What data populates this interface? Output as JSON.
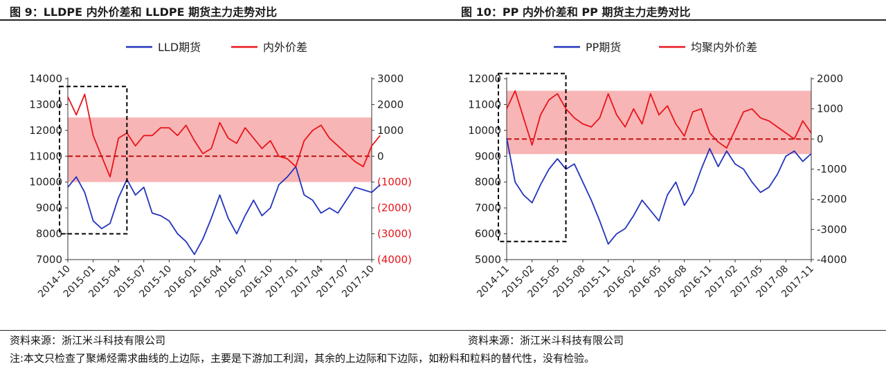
{
  "figures": [
    {
      "title": "图 9：LLDPE 内外价差和 LLDPE 期货主力走势对比",
      "source": "资料来源：浙江米斗科技有限公司"
    },
    {
      "title": "图 10：PP 内外价差和 PP 期货主力走势对比",
      "source": "资料来源：浙江米斗科技有限公司"
    }
  ],
  "note": "注:本文只检查了聚烯烃需求曲线的上边际，主要是下游加工利润，其余的上边际和下边际，如粉料和粒料的替代性，没有检验。",
  "colors": {
    "blue": "#2233bb",
    "red": "#e8141b",
    "band": "#f7a8a8",
    "dashed_red": "#c01010"
  },
  "chart_data": [
    {
      "type": "line",
      "x_ticks": [
        "2014-10",
        "2015-01",
        "2015-04",
        "2015-07",
        "2015-10",
        "2016-01",
        "2016-04",
        "2016-07",
        "2016-10",
        "2017-01",
        "2017-04",
        "2017-07",
        "2017-10"
      ],
      "left_axis": {
        "range": [
          7000,
          14000
        ],
        "ticks": [
          7000,
          8000,
          9000,
          10000,
          11000,
          12000,
          13000,
          14000
        ],
        "labels": [
          "7000",
          "8000",
          "9000",
          "10000",
          "11000",
          "12000",
          "13000",
          "14000"
        ]
      },
      "right_axis": {
        "range": [
          -4000,
          3000
        ],
        "ticks": [
          -4000,
          -3000,
          -2000,
          -1000,
          0,
          1000,
          2000,
          3000
        ],
        "labels": [
          "(4000)",
          "(3000)",
          "(2000)",
          "(1000)",
          "0",
          "1000",
          "2000",
          "3000"
        ]
      },
      "band_right": [
        -1000,
        1500
      ],
      "zero_line": 0,
      "highlight_box": {
        "x_start": "2014-10",
        "x_end": "2015-05",
        "left_y": [
          8000,
          13700
        ]
      },
      "series": [
        {
          "name": "LLD期货",
          "axis": "left",
          "color": "#2233bb",
          "points": [
            [
              "2014-10",
              9800
            ],
            [
              "2014-11",
              10200
            ],
            [
              "2014-12",
              9600
            ],
            [
              "2015-01",
              8500
            ],
            [
              "2015-02",
              8200
            ],
            [
              "2015-03",
              8400
            ],
            [
              "2015-04",
              9400
            ],
            [
              "2015-05",
              10100
            ],
            [
              "2015-06",
              9500
            ],
            [
              "2015-07",
              9800
            ],
            [
              "2015-08",
              8800
            ],
            [
              "2015-09",
              8700
            ],
            [
              "2015-10",
              8500
            ],
            [
              "2015-11",
              8000
            ],
            [
              "2015-12",
              7700
            ],
            [
              "2016-01",
              7200
            ],
            [
              "2016-02",
              7800
            ],
            [
              "2016-03",
              8600
            ],
            [
              "2016-04",
              9500
            ],
            [
              "2016-05",
              8600
            ],
            [
              "2016-06",
              8000
            ],
            [
              "2016-07",
              8700
            ],
            [
              "2016-08",
              9300
            ],
            [
              "2016-09",
              8700
            ],
            [
              "2016-10",
              9000
            ],
            [
              "2016-11",
              9900
            ],
            [
              "2016-12",
              10200
            ],
            [
              "2017-01",
              10600
            ],
            [
              "2017-02",
              9500
            ],
            [
              "2017-03",
              9300
            ],
            [
              "2017-04",
              8800
            ],
            [
              "2017-05",
              9000
            ],
            [
              "2017-06",
              8800
            ],
            [
              "2017-07",
              9300
            ],
            [
              "2017-08",
              9800
            ],
            [
              "2017-09",
              9700
            ],
            [
              "2017-10",
              9600
            ],
            [
              "2017-11",
              9900
            ]
          ]
        },
        {
          "name": "内外价差",
          "axis": "right",
          "color": "#e8141b",
          "points": [
            [
              "2014-10",
              2300
            ],
            [
              "2014-11",
              1600
            ],
            [
              "2014-12",
              2400
            ],
            [
              "2015-01",
              800
            ],
            [
              "2015-02",
              0
            ],
            [
              "2015-03",
              -800
            ],
            [
              "2015-04",
              700
            ],
            [
              "2015-05",
              900
            ],
            [
              "2015-06",
              400
            ],
            [
              "2015-07",
              800
            ],
            [
              "2015-08",
              800
            ],
            [
              "2015-09",
              1100
            ],
            [
              "2015-10",
              1100
            ],
            [
              "2015-11",
              800
            ],
            [
              "2015-12",
              1200
            ],
            [
              "2016-01",
              600
            ],
            [
              "2016-02",
              100
            ],
            [
              "2016-03",
              300
            ],
            [
              "2016-04",
              1300
            ],
            [
              "2016-05",
              700
            ],
            [
              "2016-06",
              500
            ],
            [
              "2016-07",
              1100
            ],
            [
              "2016-08",
              700
            ],
            [
              "2016-09",
              300
            ],
            [
              "2016-10",
              600
            ],
            [
              "2016-11",
              0
            ],
            [
              "2016-12",
              -100
            ],
            [
              "2017-01",
              -400
            ],
            [
              "2017-02",
              600
            ],
            [
              "2017-03",
              1000
            ],
            [
              "2017-04",
              1200
            ],
            [
              "2017-05",
              700
            ],
            [
              "2017-06",
              400
            ],
            [
              "2017-07",
              100
            ],
            [
              "2017-08",
              -200
            ],
            [
              "2017-09",
              -400
            ],
            [
              "2017-10",
              400
            ],
            [
              "2017-11",
              800
            ]
          ]
        }
      ]
    },
    {
      "type": "line",
      "x_ticks": [
        "2014-11",
        "2015-02",
        "2015-05",
        "2015-08",
        "2015-11",
        "2016-02",
        "2016-05",
        "2016-08",
        "2016-11",
        "2017-02",
        "2017-05",
        "2017-08",
        "2017-11"
      ],
      "left_axis": {
        "range": [
          5000,
          12000
        ],
        "ticks": [
          5000,
          6000,
          7000,
          8000,
          9000,
          10000,
          11000,
          12000
        ],
        "labels": [
          "5000",
          "6000",
          "7000",
          "8000",
          "9000",
          "10000",
          "11000",
          "12000"
        ]
      },
      "right_axis": {
        "range": [
          -4000,
          2000
        ],
        "ticks": [
          -4000,
          -3000,
          -2000,
          -1000,
          0,
          1000,
          2000
        ],
        "labels": [
          "-4000",
          "-3000",
          "-2000",
          "-1000",
          "0",
          "1000",
          "2000"
        ]
      },
      "band_right": [
        -500,
        1600
      ],
      "zero_line": 0,
      "highlight_box": {
        "x_start": "2014-11",
        "x_end": "2015-06",
        "left_y": [
          5700,
          12200
        ]
      },
      "series": [
        {
          "name": "PP期货",
          "axis": "left",
          "color": "#2233bb",
          "points": [
            [
              "2014-11",
              9700
            ],
            [
              "2014-12",
              8000
            ],
            [
              "2015-01",
              7500
            ],
            [
              "2015-02",
              7200
            ],
            [
              "2015-03",
              7900
            ],
            [
              "2015-04",
              8500
            ],
            [
              "2015-05",
              8900
            ],
            [
              "2015-06",
              8500
            ],
            [
              "2015-07",
              8700
            ],
            [
              "2015-08",
              8000
            ],
            [
              "2015-09",
              7300
            ],
            [
              "2015-10",
              6500
            ],
            [
              "2015-11",
              5600
            ],
            [
              "2015-12",
              6000
            ],
            [
              "2016-01",
              6200
            ],
            [
              "2016-02",
              6700
            ],
            [
              "2016-03",
              7300
            ],
            [
              "2016-04",
              6900
            ],
            [
              "2016-05",
              6500
            ],
            [
              "2016-06",
              7500
            ],
            [
              "2016-07",
              8000
            ],
            [
              "2016-08",
              7100
            ],
            [
              "2016-09",
              7600
            ],
            [
              "2016-10",
              8500
            ],
            [
              "2016-11",
              9300
            ],
            [
              "2016-12",
              8600
            ],
            [
              "2017-01",
              9200
            ],
            [
              "2017-02",
              8700
            ],
            [
              "2017-03",
              8500
            ],
            [
              "2017-04",
              8000
            ],
            [
              "2017-05",
              7600
            ],
            [
              "2017-06",
              7800
            ],
            [
              "2017-07",
              8300
            ],
            [
              "2017-08",
              9000
            ],
            [
              "2017-09",
              9200
            ],
            [
              "2017-10",
              8800
            ],
            [
              "2017-11",
              9100
            ]
          ]
        },
        {
          "name": "均聚内外价差",
          "axis": "right",
          "color": "#e8141b",
          "points": [
            [
              "2014-11",
              1000
            ],
            [
              "2014-12",
              1600
            ],
            [
              "2015-01",
              700
            ],
            [
              "2015-02",
              -200
            ],
            [
              "2015-03",
              800
            ],
            [
              "2015-04",
              1300
            ],
            [
              "2015-05",
              1500
            ],
            [
              "2015-06",
              1000
            ],
            [
              "2015-07",
              700
            ],
            [
              "2015-08",
              500
            ],
            [
              "2015-09",
              400
            ],
            [
              "2015-10",
              700
            ],
            [
              "2015-11",
              1500
            ],
            [
              "2015-12",
              800
            ],
            [
              "2016-01",
              400
            ],
            [
              "2016-02",
              1000
            ],
            [
              "2016-03",
              500
            ],
            [
              "2016-04",
              1500
            ],
            [
              "2016-05",
              800
            ],
            [
              "2016-06",
              1100
            ],
            [
              "2016-07",
              500
            ],
            [
              "2016-08",
              100
            ],
            [
              "2016-09",
              900
            ],
            [
              "2016-10",
              1000
            ],
            [
              "2016-11",
              200
            ],
            [
              "2016-12",
              -100
            ],
            [
              "2017-01",
              -300
            ],
            [
              "2017-02",
              300
            ],
            [
              "2017-03",
              900
            ],
            [
              "2017-04",
              1000
            ],
            [
              "2017-05",
              700
            ],
            [
              "2017-06",
              600
            ],
            [
              "2017-07",
              400
            ],
            [
              "2017-08",
              200
            ],
            [
              "2017-09",
              0
            ],
            [
              "2017-10",
              600
            ],
            [
              "2017-11",
              200
            ]
          ]
        }
      ]
    }
  ]
}
